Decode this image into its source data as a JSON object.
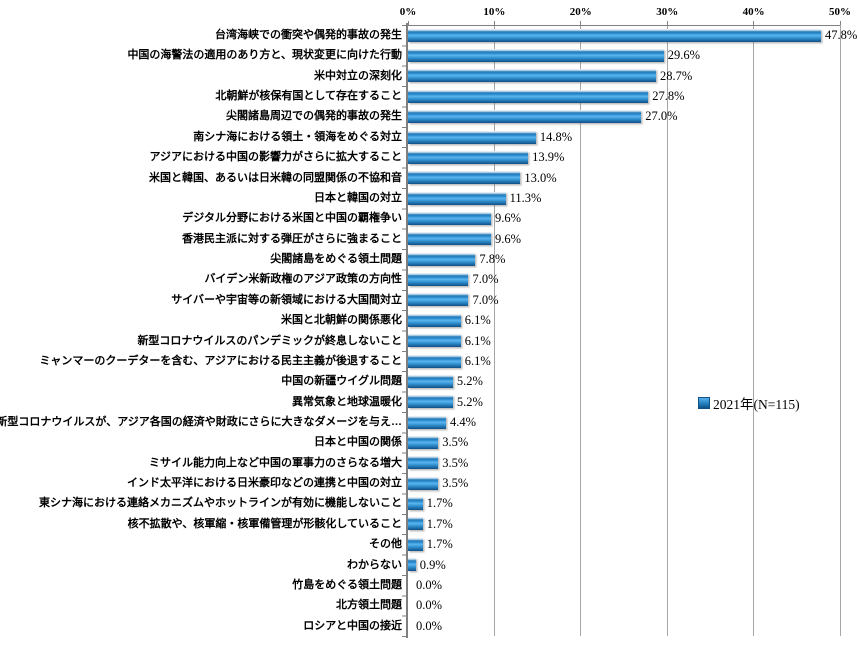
{
  "chart_data": {
    "type": "bar",
    "orientation": "horizontal",
    "title": "",
    "x_axis": {
      "position": "top",
      "min": 0,
      "max": 50,
      "tick_step": 10,
      "tick_labels": [
        "0%",
        "10%",
        "20%",
        "30%",
        "40%",
        "50%"
      ],
      "grid": true
    },
    "legend": {
      "label": "2021年(N=115)",
      "marker": "blue-square",
      "position": "middle-right"
    },
    "bar_color": "#2E8FCE",
    "categories": [
      "台湾海峡での衝突や偶発的事故の発生",
      "中国の海警法の適用のあり方と、現状変更に向けた行動",
      "米中対立の深刻化",
      "北朝鮮が核保有国として存在すること",
      "尖閣諸島周辺での偶発的事故の発生",
      "南シナ海における領土・領海をめぐる対立",
      "アジアにおける中国の影響力がさらに拡大すること",
      "米国と韓国、あるいは日米韓の同盟関係の不協和音",
      "日本と韓国の対立",
      "デジタル分野における米国と中国の覇権争い",
      "香港民主派に対する弾圧がさらに強まること",
      "尖閣諸島をめぐる領土問題",
      "バイデン米新政権のアジア政策の方向性",
      "サイバーや宇宙等の新領域における大国間対立",
      "米国と北朝鮮の関係悪化",
      "新型コロナウイルスのパンデミックが終息しないこと",
      "ミャンマーのクーデターを含む、アジアにおける民主主義が後退すること",
      "中国の新疆ウイグル問題",
      "異常気象と地球温暖化",
      "新型コロナウイルスが、アジア各国の経済や財政にさらに大きなダメージを与え…",
      "日本と中国の関係",
      "ミサイル能力向上など中国の軍事力のさらなる増大",
      "インド太平洋における日米豪印などの連携と中国の対立",
      "東シナ海における連絡メカニズムやホットラインが有効に機能しないこと",
      "核不拡散や、核軍縮・核軍備管理が形骸化していること",
      "その他",
      "わからない",
      "竹島をめぐる領土問題",
      "北方領土問題",
      "ロシアと中国の接近"
    ],
    "values": [
      47.8,
      29.6,
      28.7,
      27.8,
      27.0,
      14.8,
      13.9,
      13.0,
      11.3,
      9.6,
      9.6,
      7.8,
      7.0,
      7.0,
      6.1,
      6.1,
      6.1,
      5.2,
      5.2,
      4.4,
      3.5,
      3.5,
      3.5,
      1.7,
      1.7,
      1.7,
      0.9,
      0.0,
      0.0,
      0.0
    ],
    "value_labels": [
      "47.8%",
      "29.6%",
      "28.7%",
      "27.8%",
      "27.0%",
      "14.8%",
      "13.9%",
      "13.0%",
      "11.3%",
      "9.6%",
      "9.6%",
      "7.8%",
      "7.0%",
      "7.0%",
      "6.1%",
      "6.1%",
      "6.1%",
      "5.2%",
      "5.2%",
      "4.4%",
      "3.5%",
      "3.5%",
      "3.5%",
      "1.7%",
      "1.7%",
      "1.7%",
      "0.9%",
      "0.0%",
      "0.0%",
      "0.0%"
    ]
  }
}
